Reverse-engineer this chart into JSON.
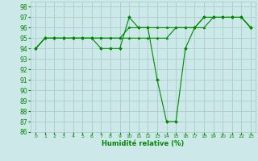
{
  "xlabel": "Humidité relative (%)",
  "xlim": [
    -0.5,
    23.5
  ],
  "ylim": [
    86,
    98.5
  ],
  "yticks": [
    86,
    87,
    88,
    89,
    90,
    91,
    92,
    93,
    94,
    95,
    96,
    97,
    98
  ],
  "xticks": [
    0,
    1,
    2,
    3,
    4,
    5,
    6,
    7,
    8,
    9,
    10,
    11,
    12,
    13,
    14,
    15,
    16,
    17,
    18,
    19,
    20,
    21,
    22,
    23
  ],
  "background_color": "#cce8e8",
  "grid_color": "#aacccc",
  "line_color": "#008800",
  "series": [
    {
      "x": [
        0,
        1,
        2,
        3,
        4,
        5,
        6,
        7,
        8,
        9,
        10,
        11,
        12,
        13,
        14,
        15,
        16,
        17,
        18,
        19,
        20,
        21,
        22,
        23
      ],
      "y": [
        94,
        95,
        95,
        95,
        95,
        95,
        95,
        94,
        94,
        94,
        97,
        96,
        96,
        91,
        87,
        87,
        94,
        96,
        97,
        97,
        97,
        97,
        97,
        96
      ],
      "marker": "D",
      "markersize": 2.0
    },
    {
      "x": [
        0,
        1,
        2,
        3,
        4,
        5,
        6,
        7,
        8,
        9,
        10,
        11,
        12,
        13,
        14,
        15,
        16,
        17,
        18,
        19,
        20,
        21,
        22,
        23
      ],
      "y": [
        94,
        95,
        95,
        95,
        95,
        95,
        95,
        95,
        95,
        95,
        96,
        96,
        96,
        96,
        96,
        96,
        96,
        96,
        97,
        97,
        97,
        97,
        97,
        96
      ],
      "marker": "s",
      "markersize": 1.8
    },
    {
      "x": [
        0,
        1,
        2,
        3,
        4,
        5,
        6,
        7,
        8,
        9,
        10,
        11,
        12,
        13,
        14,
        15,
        16,
        17,
        18,
        19,
        20,
        21,
        22,
        23
      ],
      "y": [
        94,
        95,
        95,
        95,
        95,
        95,
        95,
        95,
        95,
        95,
        95,
        95,
        95,
        95,
        95,
        96,
        96,
        96,
        96,
        97,
        97,
        97,
        97,
        96
      ],
      "marker": "^",
      "markersize": 2.0
    }
  ]
}
